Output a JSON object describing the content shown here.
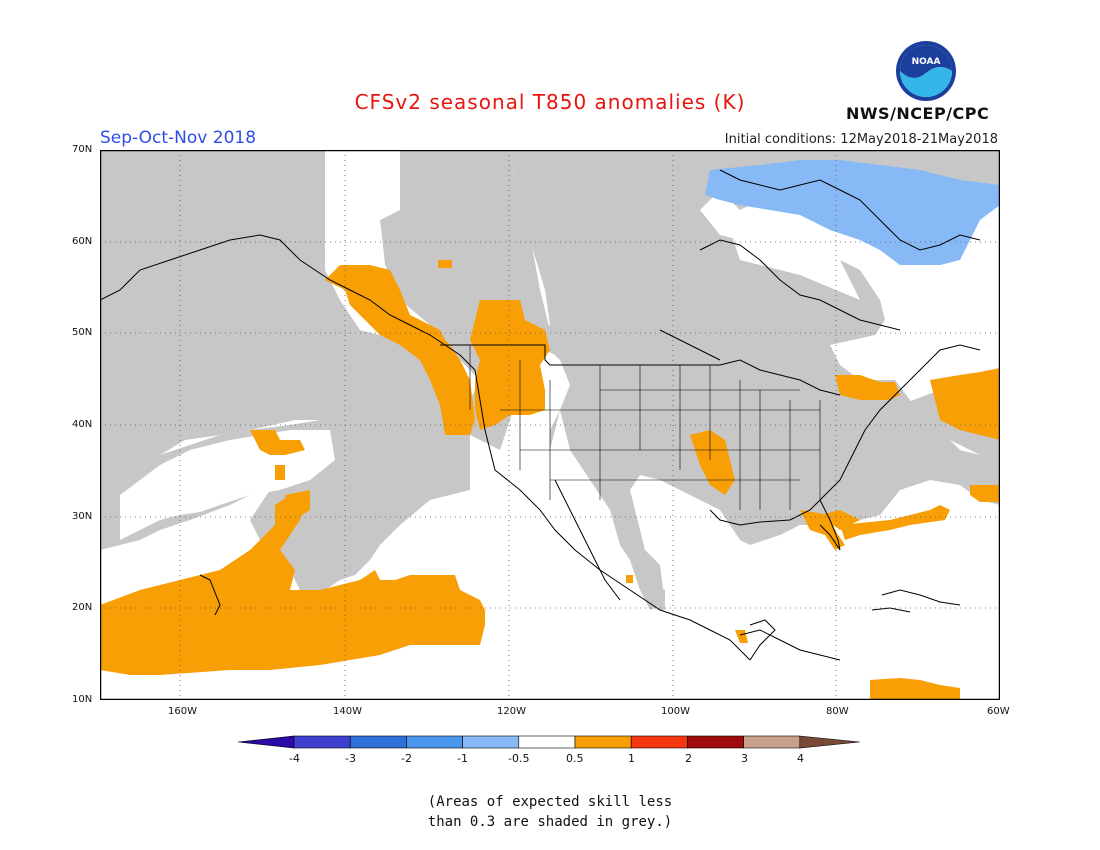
{
  "title": "CFSv2 seasonal T850 anomalies (K)",
  "season": "Sep-Oct-Nov 2018",
  "initial_conditions": "Initial conditions: 12May2018-21May2018",
  "agency": "NWS/NCEP/CPC",
  "logo_text": "NOAA",
  "lat_labels": [
    "70N",
    "60N",
    "50N",
    "40N",
    "30N",
    "20N",
    "10N"
  ],
  "lon_labels": [
    "160W",
    "140W",
    "120W",
    "100W",
    "80W",
    "60W"
  ],
  "colorbar": {
    "labels": [
      "-4",
      "-3",
      "-2",
      "-1",
      "-0.5",
      "0.5",
      "1",
      "2",
      "3",
      "4"
    ],
    "colors": [
      "#2b0aa8",
      "#3f3fd0",
      "#2f6fd8",
      "#4a96ec",
      "#86b9f5",
      "#ffffff",
      "#f99f06",
      "#f43710",
      "#a00a0a",
      "#c8a08c",
      "#7a4a38"
    ]
  },
  "legend_note_line1": "(Areas of expected skill less",
  "legend_note_line2": "than 0.3 are shaded in grey.)",
  "colors": {
    "grey_skill": "#c7c7c7",
    "warm": "#f99f06",
    "cool": "#86b9f5",
    "title": "#e8140e",
    "season": "#2b4ee8"
  }
}
